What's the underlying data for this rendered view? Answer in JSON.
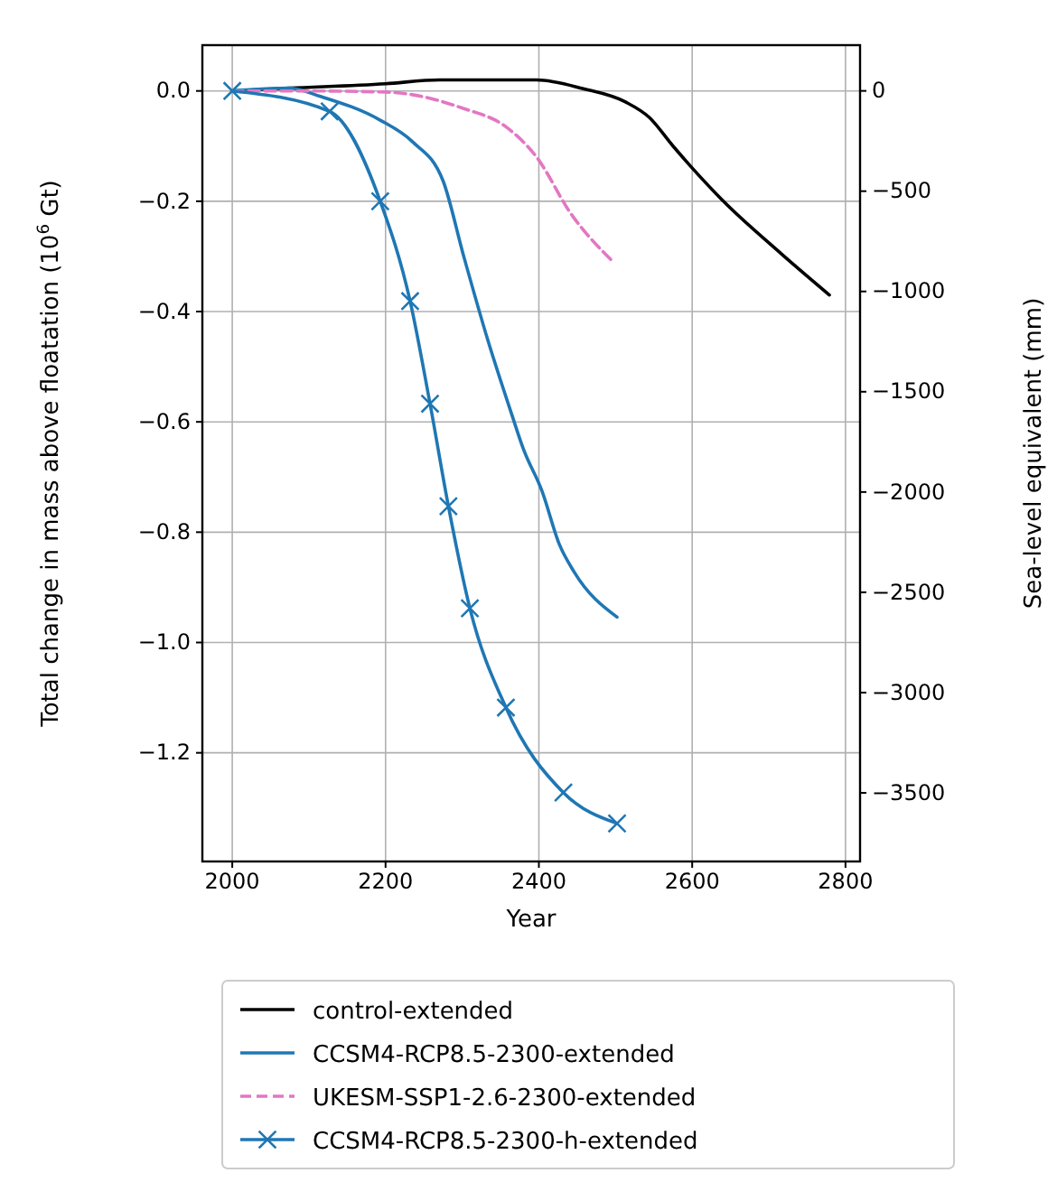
{
  "chart_data": {
    "type": "line",
    "xlabel": "Year",
    "ylabel": "Total change in mass above floatation (10$^{6}$ Gt)",
    "y2label": "Sea-level equivalent (mm)",
    "xlim": [
      1961,
      2819
    ],
    "xticks": [
      2000,
      2200,
      2400,
      2600,
      2800
    ],
    "ylim": [
      -1.397,
      0.083
    ],
    "yticks": [
      {
        "value": 0,
        "label": "0.0"
      },
      {
        "value": -0.2,
        "label": "−0.2"
      },
      {
        "value": -0.4,
        "label": "−0.4"
      },
      {
        "value": -0.6,
        "label": "−0.6"
      },
      {
        "value": -0.8,
        "label": "−0.8"
      },
      {
        "value": -1.0,
        "label": "−1.0"
      },
      {
        "value": -1.2,
        "label": "−1.2"
      }
    ],
    "y2lim": [
      -3842,
      228
    ],
    "y2ticks": [
      0,
      {
        "value": -500,
        "label": "−500"
      },
      {
        "value": -1000,
        "label": "−1000"
      },
      {
        "value": -1500,
        "label": "−1500"
      },
      {
        "value": -2000,
        "label": "−2000"
      },
      {
        "value": -2500,
        "label": "−2500"
      },
      {
        "value": -3000,
        "label": "−3000"
      },
      {
        "value": -3500,
        "label": "−3500"
      }
    ],
    "grid": true,
    "legend": "bottom",
    "series": [
      {
        "name": "control-extended",
        "color": "#000000",
        "line_style": "solid",
        "marker": "none",
        "x": [
          2000,
          2075,
          2200,
          2270,
          2397,
          2458,
          2513,
          2544,
          2575,
          2638,
          2716,
          2779
        ],
        "values": [
          0,
          0.005,
          0.013,
          0.02,
          0.02,
          0.004,
          -0.02,
          -0.048,
          -0.1,
          -0.196,
          -0.295,
          -0.37
        ]
      },
      {
        "name": "CCSM4-RCP8.5-2300-extended",
        "color": "#1f77b4",
        "line_style": "solid",
        "marker": "none",
        "x": [
          2000,
          2075,
          2115,
          2193,
          2235,
          2275,
          2302,
          2333,
          2364,
          2380,
          2404,
          2427,
          2446,
          2502
        ],
        "values": [
          0,
          0.005,
          -0.01,
          -0.053,
          -0.092,
          -0.163,
          -0.3,
          -0.45,
          -0.584,
          -0.65,
          -0.725,
          -0.823,
          -0.872,
          -0.954
        ]
      },
      {
        "name": "UKESM-SSP1-2.6-2300-extended",
        "color": "#e377c2",
        "line_style": "dashed",
        "marker": "none",
        "x": [
          2000,
          2091,
          2200,
          2302,
          2357,
          2397,
          2442,
          2497
        ],
        "values": [
          0,
          0,
          -0.002,
          -0.032,
          -0.065,
          -0.12,
          -0.223,
          -0.31
        ]
      },
      {
        "name": "CCSM4-RCP8.5-2300-h-extended",
        "color": "#1f77b4",
        "line_style": "solid",
        "marker": "cross",
        "x": [
          2000,
          2127,
          2193,
          2232,
          2258,
          2282,
          2310,
          2357,
          2432,
          2502
        ],
        "values": [
          0,
          -0.037,
          -0.2,
          -0.381,
          -0.567,
          -0.753,
          -0.938,
          -1.118,
          -1.272,
          -1.328
        ]
      }
    ]
  }
}
